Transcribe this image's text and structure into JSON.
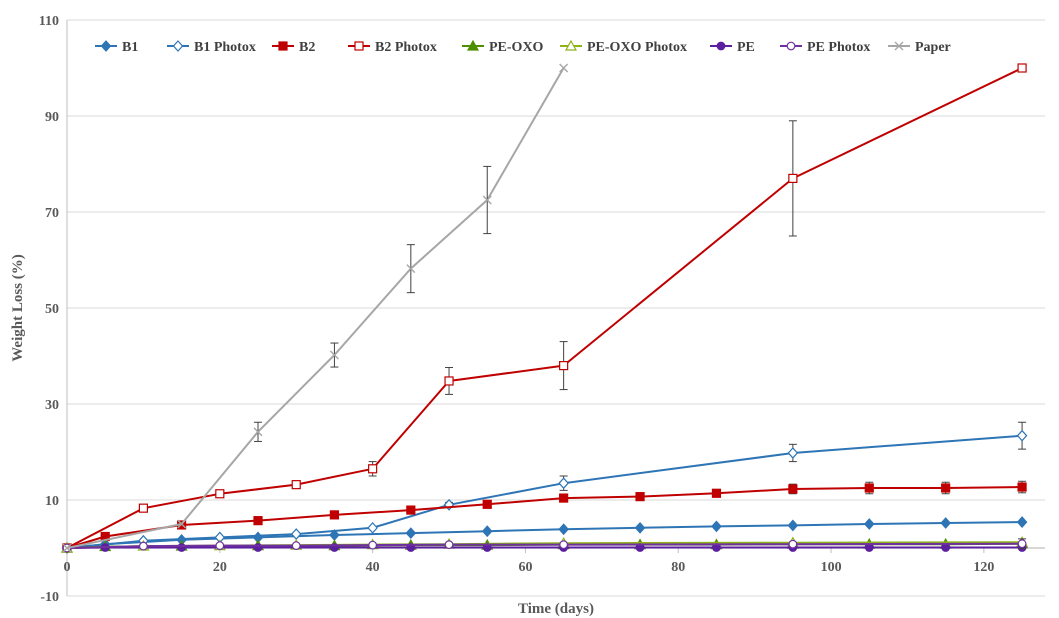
{
  "chart_data": {
    "type": "line",
    "title": "",
    "xlabel": "Time (days)",
    "ylabel": "Weight Loss (%)",
    "xlim": [
      0,
      128
    ],
    "ylim": [
      -10,
      110
    ],
    "xticks": [
      "0",
      "20",
      "40",
      "60",
      "80",
      "100",
      "120"
    ],
    "yticks": [
      "-10",
      "10",
      "30",
      "50",
      "70",
      "90",
      "110"
    ],
    "grid": "horizontal",
    "legend": "top",
    "series": [
      {
        "name": "B1",
        "color": "#2E75B6",
        "marker": "diamond-filled",
        "x": [
          0,
          5,
          15,
          25,
          35,
          45,
          55,
          65,
          75,
          85,
          95,
          105,
          115,
          125
        ],
        "y": [
          0,
          0.8,
          1.7,
          2.2,
          2.7,
          3.1,
          3.5,
          3.9,
          4.2,
          4.5,
          4.7,
          5.0,
          5.2,
          5.4
        ],
        "err": [
          0,
          0,
          0,
          0,
          0,
          0,
          0,
          0,
          0,
          0,
          0,
          0,
          0,
          0
        ]
      },
      {
        "name": "B1 Photox",
        "color": "#2E75B6",
        "marker": "diamond-open",
        "x": [
          0,
          10,
          20,
          30,
          40,
          50,
          65,
          95,
          125
        ],
        "y": [
          0,
          1.5,
          2.2,
          2.9,
          4.2,
          9.0,
          13.5,
          19.8,
          23.4
        ],
        "err": [
          0,
          0,
          0,
          0,
          0,
          0.5,
          1.5,
          1.8,
          2.8
        ]
      },
      {
        "name": "B2",
        "color": "#C00000",
        "marker": "square-filled",
        "x": [
          0,
          5,
          15,
          25,
          35,
          45,
          55,
          65,
          75,
          85,
          95,
          105,
          115,
          125
        ],
        "y": [
          0,
          2.4,
          4.8,
          5.7,
          6.9,
          7.9,
          9.1,
          10.4,
          10.7,
          11.4,
          12.3,
          12.5,
          12.5,
          12.7
        ],
        "err": [
          0,
          0,
          0,
          0,
          0,
          0,
          0,
          0.8,
          0.6,
          0.6,
          1.0,
          1.2,
          1.2,
          1.2
        ]
      },
      {
        "name": "B2 Photox",
        "color": "#C00000",
        "marker": "square-open",
        "x": [
          0,
          10,
          20,
          30,
          40,
          50,
          65,
          95,
          125
        ],
        "y": [
          0,
          8.3,
          11.3,
          13.2,
          16.5,
          34.8,
          38.0,
          77.0,
          100.0
        ],
        "err": [
          0,
          0,
          0,
          0,
          1.5,
          2.8,
          5.0,
          12.0,
          0
        ]
      },
      {
        "name": "PE-OXO",
        "color": "#4E8F00",
        "marker": "triangle-filled",
        "x": [
          0,
          5,
          15,
          25,
          35,
          45,
          55,
          65,
          75,
          85,
          95,
          105,
          115,
          125
        ],
        "y": [
          0,
          0.3,
          0.4,
          0.5,
          0.5,
          0.6,
          0.6,
          0.7,
          0.7,
          0.7,
          0.8,
          0.8,
          0.8,
          0.9
        ],
        "err": [
          0,
          0,
          0,
          0,
          0,
          0,
          0,
          0,
          0,
          0,
          0,
          0,
          0,
          0
        ]
      },
      {
        "name": "PE-OXO Photox",
        "color": "#8DB319",
        "marker": "triangle-open",
        "x": [
          0,
          10,
          20,
          30,
          40,
          50,
          65,
          95,
          125
        ],
        "y": [
          0,
          0.4,
          0.5,
          0.6,
          0.7,
          0.8,
          1.0,
          1.1,
          1.2
        ],
        "err": [
          0,
          0,
          0,
          0,
          0,
          0,
          0,
          0,
          0
        ]
      },
      {
        "name": "PE",
        "color": "#5B1FA0",
        "marker": "circle-filled",
        "x": [
          0,
          5,
          15,
          25,
          35,
          45,
          55,
          65,
          75,
          85,
          95,
          105,
          115,
          125
        ],
        "y": [
          0,
          0.1,
          0.1,
          0.1,
          0.1,
          0.1,
          0.1,
          0.1,
          0.1,
          0.1,
          0.1,
          0.1,
          0.1,
          0.1
        ],
        "err": [
          0,
          0,
          0,
          0,
          0,
          0,
          0,
          0,
          0,
          0,
          0,
          0,
          0,
          0
        ]
      },
      {
        "name": "PE Photox",
        "color": "#7030A0",
        "marker": "circle-open",
        "x": [
          0,
          10,
          20,
          30,
          40,
          50,
          65,
          95,
          125
        ],
        "y": [
          0,
          0.4,
          0.5,
          0.5,
          0.6,
          0.7,
          0.7,
          0.8,
          0.9
        ],
        "err": [
          0,
          0,
          0,
          0,
          0,
          0,
          0,
          0,
          1.0
        ]
      },
      {
        "name": "Paper",
        "color": "#A6A6A6",
        "marker": "x",
        "x": [
          0,
          15,
          25,
          35,
          45,
          55,
          65
        ],
        "y": [
          0,
          5.0,
          24.2,
          40.2,
          58.2,
          72.5,
          100.0
        ],
        "err": [
          0,
          0,
          2.0,
          2.5,
          5.0,
          7.0,
          0
        ]
      }
    ]
  }
}
